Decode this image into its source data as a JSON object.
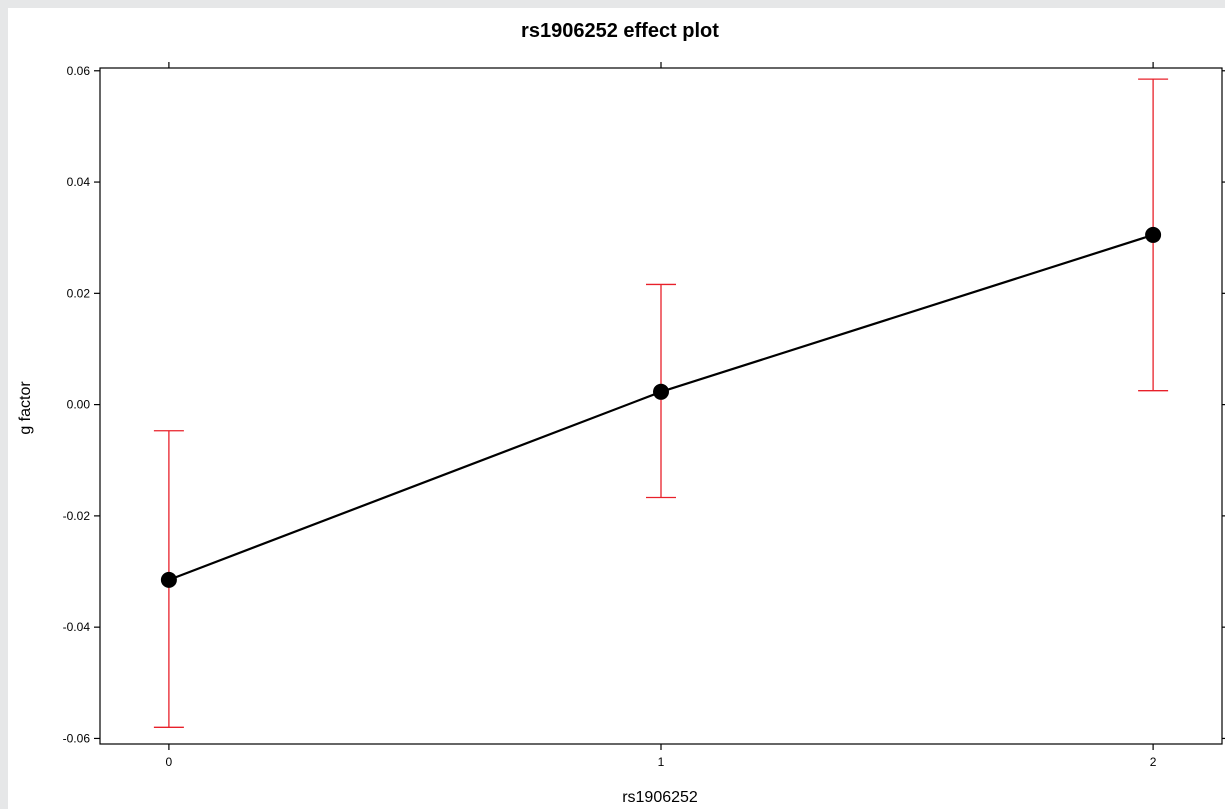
{
  "chart_data": {
    "type": "line",
    "title": "rs1906252 effect plot",
    "xlabel": "rs1906252",
    "ylabel": "g factor",
    "x": [
      0,
      1,
      2
    ],
    "x_ticks": [
      "0",
      "1",
      "2"
    ],
    "y_ticks": [
      "0.06",
      "0.04",
      "0.02",
      "0.00",
      "-0.02",
      "-0.04",
      "-0.06"
    ],
    "y_tick_values": [
      0.06,
      0.04,
      0.02,
      0.0,
      -0.02,
      -0.04,
      -0.06
    ],
    "xlim": [
      -0.14,
      2.14
    ],
    "ylim": [
      -0.061,
      0.0605
    ],
    "grid": false,
    "series": [
      {
        "values": [
          -0.0315,
          0.0023,
          0.0305
        ],
        "lower": [
          -0.058,
          -0.0167,
          0.0025
        ],
        "upper": [
          -0.0047,
          0.0216,
          0.0585
        ],
        "line_color": "#000000",
        "marker_color": "#000000",
        "errorbar_color": "#e8202a"
      }
    ]
  }
}
